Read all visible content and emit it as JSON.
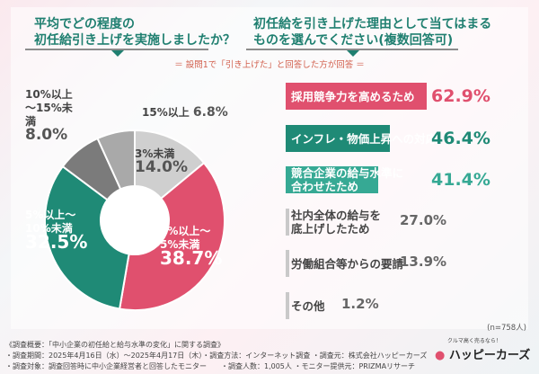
{
  "left_question": [
    "平均でどの程度の",
    "初任給引き上げを実施しましたか？"
  ],
  "right_question": [
    "初任給を引き上げた理由として当てはまる",
    "ものを選んでください(複数回答可)"
  ],
  "note": "＝ 設問1で「引き上げた」と回答した方が回答 ＝",
  "n_label": "(n=758人)",
  "colors": {
    "pink": "#e0506e",
    "teal": "#1f8a76",
    "light_teal": "#36a994",
    "grey": "#a9a9a9",
    "dark_grey": "#7b7b7b",
    "light_grey": "#cfcfcf"
  },
  "chart_data": [
    {
      "type": "pie",
      "donut": true,
      "start": "top",
      "direction": "clockwise",
      "slices": [
        {
          "label": "3%未満",
          "value": 14.0,
          "color": "#cfcfcf"
        },
        {
          "label": "3%以上～5%未満",
          "value": 38.7,
          "color": "#e0506e"
        },
        {
          "label": "5%以上～10%未満",
          "value": 32.5,
          "color": "#1f8a76"
        },
        {
          "label": "10%以上～15%未満",
          "value": 8.0,
          "color": "#7b7b7b"
        },
        {
          "label": "15%以上",
          "value": 6.8,
          "color": "#a9a9a9"
        }
      ]
    },
    {
      "type": "bar",
      "orientation": "horizontal",
      "unit": "%",
      "categories": [
        "採用競争力を高めるため",
        "インフレ・物価上昇への対応",
        "競合企業の給与水準に合わせたため",
        "社内全体の給与を底上げしたため",
        "労働組合等からの要請",
        "その他"
      ],
      "values": [
        62.9,
        46.4,
        41.4,
        27.0,
        13.9,
        1.2
      ],
      "colors": [
        "#e0506e",
        "#1f8a76",
        "#36a994",
        "#c9c9c9",
        "#c9c9c9",
        "#c9c9c9"
      ]
    }
  ],
  "labels": {
    "s0": [
      "3%未満",
      "14.0%"
    ],
    "s1": [
      "3%以上～",
      "5%未満",
      "38.7%"
    ],
    "s2": [
      "5%以上～",
      "10%未満",
      "32.5%"
    ],
    "s3": [
      "10%以上～",
      "15%未満",
      "8.0%"
    ],
    "s4": [
      "15%以上",
      "6.8%"
    ]
  },
  "bar_lines": [
    [
      "採用競争力を高めるため"
    ],
    [
      "インフレ・物価上昇への対応"
    ],
    [
      "競合企業の給与水準に",
      "合わせたため"
    ],
    [
      "社内全体の給与を",
      "底上げしたため"
    ],
    [
      "労働組合等からの要請"
    ],
    [
      "その他"
    ]
  ],
  "bar_pcts": [
    "62.9%",
    "46.4%",
    "41.4%",
    "27.0%",
    "13.9%",
    "1.2%"
  ],
  "footer": [
    "《調査概要：「中小企業の初任給と給与水準の変化」に関する調査》",
    "・調査期間：2025年4月16日（水）～2025年4月17日（木）・調査方法：インターネット調査 ・調査元：株式会社ハッピーカーズ",
    "・調査対象：調査回答時に中小企業経営者と回答したモニター　　・調査人数：1,005人 ・モニター提供元：PRIZMAリサーチ"
  ],
  "logo": {
    "tagline": "クルマ高く売るなら！",
    "name": "ハッピーカーズ"
  }
}
